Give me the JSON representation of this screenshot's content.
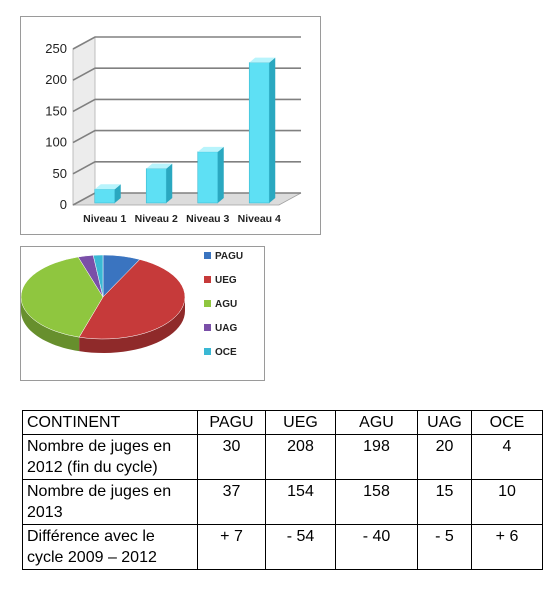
{
  "colors": {
    "bar_front": "#5ee0f4",
    "bar_side": "#2aa8c0",
    "bar_top": "#b8f4fc",
    "gridline": "#808080",
    "PAGU": "#3a74c0",
    "UEG": "#c63a3a",
    "AGU": "#8fc63f",
    "UAG": "#7a4fa8",
    "OCE": "#3ab8d4"
  },
  "chart_data": [
    {
      "type": "bar",
      "categories": [
        "Niveau 1",
        "Niveau 2",
        "Niveau 3",
        "Niveau 4"
      ],
      "values": [
        22,
        55,
        82,
        225
      ],
      "ylim": [
        0,
        250
      ],
      "yticks": [
        "0",
        "50",
        "100",
        "150",
        "200",
        "250"
      ],
      "grid": true,
      "style": "3d-columns"
    },
    {
      "type": "pie",
      "categories": [
        "PAGU",
        "UEG",
        "AGU",
        "UAG",
        "OCE"
      ],
      "values": [
        7.4,
        47.3,
        40.4,
        3.0,
        1.9
      ],
      "legend": "right",
      "style": "3d"
    }
  ],
  "table": {
    "headers": [
      "CONTINENT",
      "PAGU",
      "UEG",
      "AGU",
      "UAG",
      "OCE"
    ],
    "rows": [
      {
        "label": "Nombre de juges en 2012 (fin du cycle)",
        "values": [
          "30",
          "208",
          "198",
          "20",
          "4"
        ]
      },
      {
        "label": "Nombre de juges en 2013",
        "values": [
          "37",
          "154",
          "158",
          "15",
          "10"
        ]
      },
      {
        "label": "Différence avec le cycle 2009 – 2012",
        "values": [
          "+ 7",
          "- 54",
          "- 40",
          "- 5",
          "+ 6"
        ]
      }
    ]
  }
}
